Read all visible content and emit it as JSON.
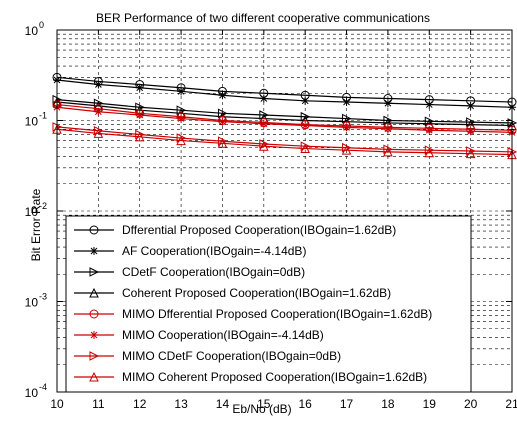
{
  "chart_data": {
    "type": "line",
    "title": "BER Performance of two different cooperative communications",
    "xlabel": "Eb/No (dB)",
    "ylabel": "Bit Error Rate",
    "xlim": [
      10,
      21
    ],
    "ylim": [
      0.0001,
      1
    ],
    "yscale": "log",
    "grid": true,
    "legend_position": "bottom-left",
    "x": [
      10,
      11,
      12,
      13,
      14,
      15,
      16,
      17,
      18,
      19,
      20,
      21
    ],
    "xticks": [
      "10",
      "11",
      "12",
      "13",
      "14",
      "15",
      "16",
      "17",
      "18",
      "19",
      "20",
      "21"
    ],
    "yticks": [
      {
        "value": 1,
        "base": "10",
        "exp": "0"
      },
      {
        "value": 0.1,
        "base": "10",
        "exp": "-1"
      },
      {
        "value": 0.01,
        "base": "10",
        "exp": "-2"
      },
      {
        "value": 0.001,
        "base": "10",
        "exp": "-3"
      },
      {
        "value": 0.0001,
        "base": "10",
        "exp": "-4"
      }
    ],
    "series": [
      {
        "name": "Dfferential Proposed Cooperation(IBOgain=1.62dB)",
        "color": "#000000",
        "marker": "circle",
        "values": [
          0.3,
          0.27,
          0.25,
          0.23,
          0.21,
          0.2,
          0.19,
          0.18,
          0.175,
          0.17,
          0.165,
          0.16
        ]
      },
      {
        "name": "AF Cooperation(IBOgain=-4.14dB)",
        "color": "#000000",
        "marker": "star",
        "values": [
          0.28,
          0.25,
          0.23,
          0.21,
          0.19,
          0.175,
          0.165,
          0.16,
          0.155,
          0.15,
          0.145,
          0.14
        ]
      },
      {
        "name": "CDetF Cooperation(IBOgain=0dB)",
        "color": "#000000",
        "marker": "triangle-right",
        "values": [
          0.17,
          0.155,
          0.14,
          0.13,
          0.12,
          0.115,
          0.11,
          0.105,
          0.1,
          0.098,
          0.096,
          0.094
        ]
      },
      {
        "name": "Coherent Proposed Cooperation(IBOgain=1.62dB)",
        "color": "#000000",
        "marker": "triangle-up",
        "values": [
          0.16,
          0.145,
          0.13,
          0.12,
          0.11,
          0.105,
          0.1,
          0.097,
          0.094,
          0.092,
          0.09,
          0.088
        ]
      },
      {
        "name": "MIMO Dfferential Proposed Cooperation(IBOgain=1.62dB)",
        "color": "#cc0000",
        "marker": "circle",
        "values": [
          0.15,
          0.135,
          0.12,
          0.11,
          0.1,
          0.095,
          0.09,
          0.087,
          0.084,
          0.082,
          0.08,
          0.078
        ]
      },
      {
        "name": "MIMO Cooperation(IBOgain=-4.14dB)",
        "color": "#cc0000",
        "marker": "star",
        "values": [
          0.14,
          0.125,
          0.115,
          0.105,
          0.097,
          0.092,
          0.088,
          0.084,
          0.081,
          0.078,
          0.076,
          0.074
        ]
      },
      {
        "name": "MIMO CDetF Cooperation(IBOgain=0dB)",
        "color": "#cc0000",
        "marker": "triangle-right",
        "values": [
          0.085,
          0.077,
          0.07,
          0.064,
          0.059,
          0.055,
          0.052,
          0.05,
          0.048,
          0.047,
          0.046,
          0.045
        ]
      },
      {
        "name": "MIMO Coherent Proposed Cooperation(IBOgain=1.62dB)",
        "color": "#cc0000",
        "marker": "triangle-up",
        "values": [
          0.08,
          0.072,
          0.066,
          0.06,
          0.056,
          0.052,
          0.049,
          0.047,
          0.045,
          0.044,
          0.043,
          0.042
        ]
      }
    ]
  }
}
